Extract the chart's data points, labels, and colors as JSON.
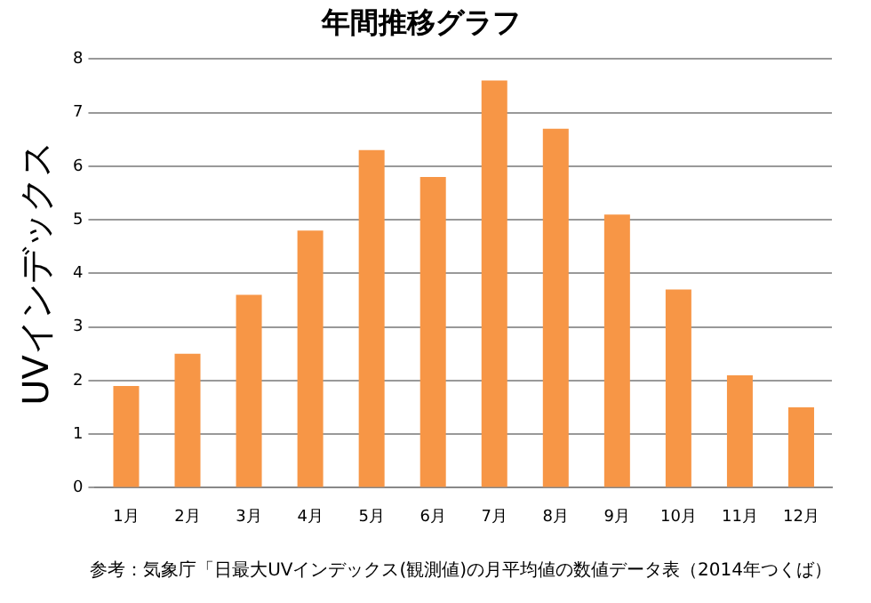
{
  "chart_data": {
    "type": "bar",
    "title": "年間推移グラフ",
    "ylabel": "UVインデックス",
    "categories": [
      "1月",
      "2月",
      "3月",
      "4月",
      "5月",
      "6月",
      "7月",
      "8月",
      "9月",
      "10月",
      "11月",
      "12月"
    ],
    "values": [
      1.9,
      2.5,
      3.6,
      4.8,
      6.3,
      5.8,
      7.6,
      6.7,
      5.1,
      3.7,
      2.1,
      1.5
    ],
    "color": "#f79646",
    "ylim": [
      0,
      8
    ],
    "yticks": [
      0,
      1,
      2,
      3,
      4,
      5,
      6,
      7,
      8
    ],
    "grid": "y",
    "legend": false,
    "annotations": [
      "参考：気象庁「日最大UVインデックス(観測値)の月平均値の数値データ表（2014年つくば）"
    ]
  }
}
